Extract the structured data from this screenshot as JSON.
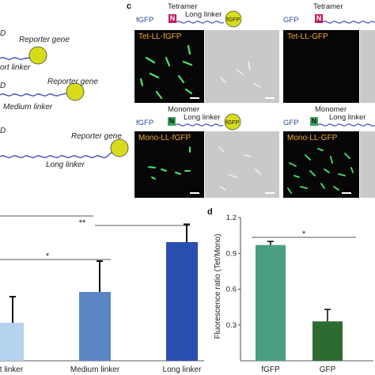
{
  "panel_a": {
    "rows": [
      {
        "gene_label": "Reporter gene",
        "linker_label": "ort linker"
      },
      {
        "gene_label": "Reporter gene",
        "linker_label": "Medium linker"
      },
      {
        "gene_label": "Reporter gene",
        "linker_label": "Long linker"
      }
    ],
    "row_edge_marks": [
      "D",
      "D",
      "D"
    ]
  },
  "panel_c": {
    "letter": "c",
    "left_col": {
      "top": {
        "side_label": "fGFP",
        "state_label": "Tetramer",
        "domain": "N",
        "linker": "Long linker",
        "gene": "fGFP",
        "micro_title": "Tet-LL-fGFP"
      },
      "bottom": {
        "side_label": "fGFP",
        "state_label": "Monomer",
        "domain": "N",
        "linker": "Long linker",
        "gene": "fGFP",
        "micro_title": "Mono-LL-fGFP"
      }
    },
    "right_col": {
      "top": {
        "side_label": "GFP",
        "state_label": "Tetramer",
        "domain": "N",
        "micro_title": "Tet-LL-GFP"
      },
      "bottom": {
        "side_label": "GFP",
        "state_label": "Monomer",
        "domain": "N",
        "linker": "Long linker",
        "micro_title": "Mono-LL-GFP"
      }
    },
    "colors": {
      "tetramer_domain": "#c2185b",
      "monomer_domain": "#3aa55a",
      "gfp_ball": "#d6dc1a",
      "linker": "#3d4dc0",
      "title": "#f2a93b"
    }
  },
  "panel_b": {
    "significance": [
      "**",
      "*"
    ],
    "chart_data": {
      "type": "bar",
      "categories": [
        "ort linker",
        "Medium linker",
        "Long linker"
      ],
      "values": [
        0.32,
        0.58,
        1.0
      ],
      "errors": [
        0.22,
        0.26,
        0.15
      ],
      "bar_colors": [
        "#b5d2ee",
        "#5a86c6",
        "#2b4fb0"
      ],
      "ylim": [
        0,
        1.3
      ],
      "xlabel": "",
      "ylabel": ""
    }
  },
  "panel_d": {
    "letter": "d",
    "significance": "*",
    "chart_data": {
      "type": "bar",
      "categories": [
        "fGFP",
        "GFP"
      ],
      "values": [
        0.97,
        0.33
      ],
      "errors": [
        0.03,
        0.1
      ],
      "bar_colors": [
        "#4a9e84",
        "#2e6b30"
      ],
      "ylim": [
        0,
        1.2
      ],
      "yticks": [
        "0.3",
        "0.6",
        "0.9",
        "1.2"
      ],
      "ylabel": "Fluorescence ratio (Tet/Mono)",
      "xlabel": ""
    }
  }
}
